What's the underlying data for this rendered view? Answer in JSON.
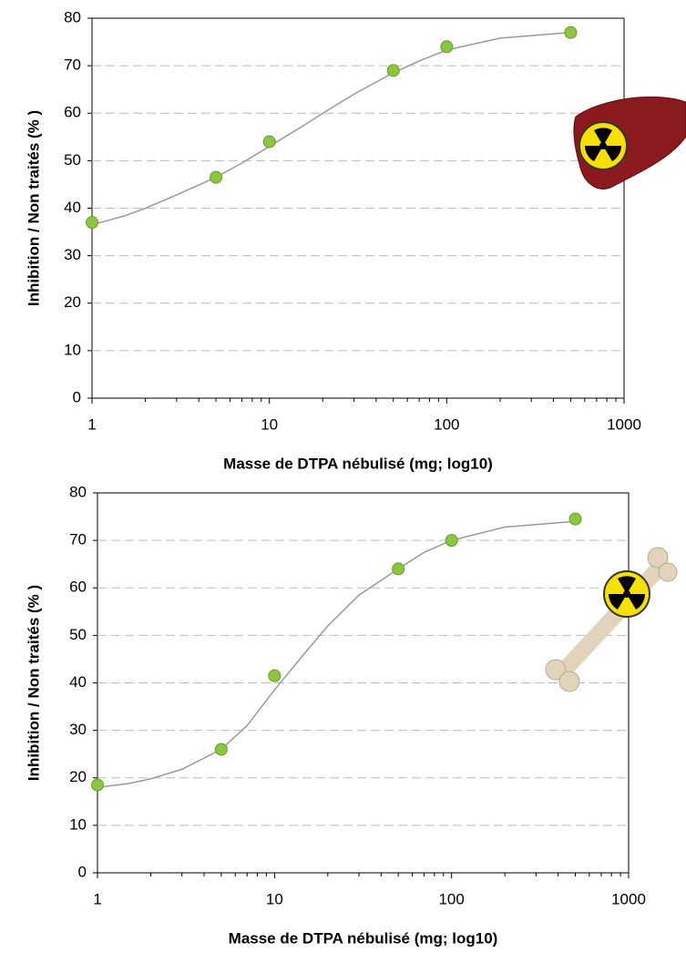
{
  "chart_data": [
    {
      "type": "scatter",
      "xlabel": "Masse de DTPA nébulisé (mg; log10)",
      "ylabel": "Inhibition / Non traités (% )",
      "xscale": "log",
      "xlim": [
        1,
        1000
      ],
      "xticks": [
        1,
        10,
        100,
        1000
      ],
      "ylim": [
        0,
        80
      ],
      "yticks": [
        0,
        10,
        20,
        30,
        40,
        50,
        60,
        70,
        80
      ],
      "grid": true,
      "series": [
        {
          "type": "scatter",
          "color": "#8cc63f",
          "x": [
            1,
            5,
            10,
            50,
            100,
            500
          ],
          "values": [
            37,
            46.5,
            54,
            69,
            74,
            77
          ]
        },
        {
          "type": "line",
          "color": "#999999",
          "x": [
            1,
            1.5,
            2,
            3,
            5,
            7,
            10,
            15,
            20,
            30,
            50,
            70,
            100,
            200,
            500
          ],
          "values": [
            36.5,
            38.3,
            40,
            42.8,
            46.5,
            49.5,
            53,
            57,
            60,
            64,
            68.5,
            71,
            73.3,
            75.8,
            77
          ]
        }
      ]
    },
    {
      "type": "scatter",
      "xlabel": "Masse de DTPA nébulisé (mg; log10)",
      "ylabel": "Inhibition / Non traités (% )",
      "xscale": "log",
      "xlim": [
        1,
        1000
      ],
      "xticks": [
        1,
        10,
        100,
        1000
      ],
      "ylim": [
        0,
        80
      ],
      "yticks": [
        0,
        10,
        20,
        30,
        40,
        50,
        60,
        70,
        80
      ],
      "grid": true,
      "series": [
        {
          "type": "scatter",
          "color": "#8cc63f",
          "x": [
            1,
            5,
            10,
            50,
            100,
            500
          ],
          "values": [
            18.5,
            26,
            41.5,
            64,
            70,
            74.5
          ]
        },
        {
          "type": "line",
          "color": "#999999",
          "x": [
            1,
            1.5,
            2,
            3,
            5,
            7,
            10,
            15,
            20,
            30,
            50,
            70,
            100,
            200,
            500
          ],
          "values": [
            18,
            18.8,
            19.8,
            21.8,
            26,
            31,
            38.5,
            46.5,
            52,
            58.5,
            64,
            67.5,
            70,
            72.8,
            74
          ]
        }
      ]
    }
  ]
}
